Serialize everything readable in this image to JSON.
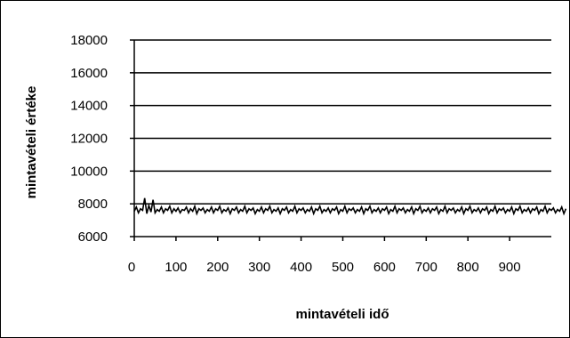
{
  "chart_data": {
    "type": "line",
    "title": "",
    "xlabel": "mintavételi idő",
    "ylabel": "mintavételi értéke",
    "xlim": [
      0,
      1000
    ],
    "ylim": [
      6000,
      18000
    ],
    "x_ticks": [
      0,
      100,
      200,
      300,
      400,
      500,
      600,
      700,
      800,
      900
    ],
    "x_tick_labels": [
      "0",
      "100",
      "200",
      "300",
      "400",
      "500",
      "600",
      "700",
      "800",
      "900"
    ],
    "y_ticks": [
      6000,
      8000,
      10000,
      12000,
      14000,
      16000,
      18000
    ],
    "y_tick_labels": [
      "6000",
      "8000",
      "10000",
      "12000",
      "14000",
      "16000",
      "18000"
    ],
    "grid": "horizontal",
    "legend": "none",
    "line_color": "#000000",
    "series": [
      {
        "x_start": 0,
        "x_step": 5,
        "values": [
          7550,
          7800,
          7450,
          7700,
          7600,
          8350,
          7400,
          7900,
          7500,
          8250,
          7450,
          7650,
          7550,
          7800,
          7450,
          7700,
          7600,
          7850,
          7450,
          7700,
          7550,
          7750,
          7450,
          7650,
          7600,
          7800,
          7450,
          7700,
          7550,
          7850,
          7400,
          7700,
          7600,
          7750,
          7450,
          7650,
          7550,
          7800,
          7450,
          7700,
          7600,
          7850,
          7450,
          7650,
          7550,
          7750,
          7400,
          7700,
          7600,
          7800,
          7450,
          7650,
          7550,
          7850,
          7450,
          7700,
          7600,
          7750,
          7400,
          7650,
          7550,
          7800,
          7450,
          7700,
          7600,
          7850,
          7450,
          7650,
          7550,
          7750,
          7400,
          7700,
          7600,
          7800,
          7450,
          7650,
          7550,
          7850,
          7450,
          7700,
          7600,
          7750,
          7450,
          7650,
          7550,
          7800,
          7400,
          7700,
          7600,
          7850,
          7450,
          7650,
          7550,
          7750,
          7450,
          7700,
          7600,
          7800,
          7400,
          7650,
          7550,
          7850,
          7450,
          7700,
          7600,
          7750,
          7450,
          7650,
          7550,
          7800,
          7400,
          7700,
          7600,
          7850,
          7450,
          7650,
          7550,
          7750,
          7450,
          7700,
          7600,
          7800,
          7400,
          7650,
          7550,
          7850,
          7450,
          7700,
          7600,
          7750,
          7450,
          7650,
          7550,
          7800,
          7400,
          7700,
          7600,
          7850,
          7450,
          7650,
          7550,
          7750,
          7450,
          7700,
          7600,
          7800,
          7400,
          7650,
          7550,
          7850,
          7450,
          7700,
          7600,
          7750,
          7450,
          7650,
          7550,
          7800,
          7400,
          7700,
          7600,
          7850,
          7450,
          7650,
          7550,
          7750,
          7450,
          7700,
          7600,
          7800,
          7400,
          7650,
          7550,
          7850,
          7450,
          7700,
          7600,
          7750,
          7450,
          7650,
          7550,
          7800,
          7400,
          7700,
          7600,
          7850,
          7450,
          7650,
          7550,
          7750,
          7450,
          7700,
          7600,
          7800,
          7400,
          7650,
          7550,
          7850,
          7450,
          7700,
          7600,
          7750,
          7450,
          7650,
          7550,
          7800,
          7400,
          7700
        ]
      }
    ]
  }
}
